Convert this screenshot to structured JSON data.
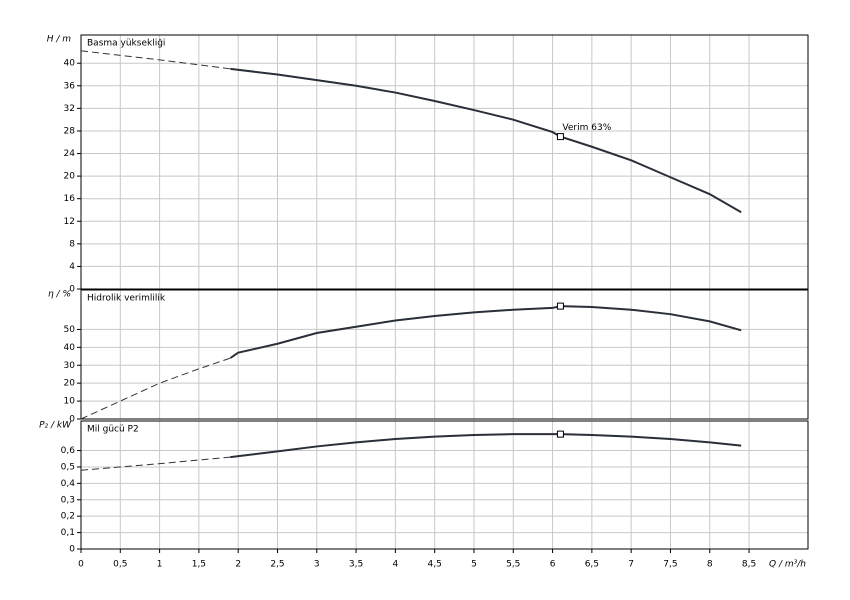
{
  "chart_data": [
    {
      "type": "line",
      "title": "Basma yüksekliği",
      "y_label": "H / m",
      "xlim": [
        0,
        9.25
      ],
      "ylim": [
        0,
        45
      ],
      "yticks": [
        0,
        4,
        8,
        12,
        16,
        20,
        24,
        28,
        32,
        36,
        40
      ],
      "grid": true,
      "series": [
        {
          "style": "dashed",
          "x": [
            0,
            1,
            1.9
          ],
          "values": [
            42.2,
            40.6,
            39
          ]
        },
        {
          "style": "solid",
          "x": [
            1.9,
            2.5,
            3,
            3.5,
            4,
            4.5,
            5,
            5.5,
            6,
            6.1,
            6.5,
            7,
            7.5,
            8,
            8.4
          ],
          "values": [
            39,
            38,
            37,
            36,
            34.8,
            33.3,
            31.7,
            30,
            27.8,
            27,
            25.2,
            22.8,
            19.8,
            16.8,
            13.6
          ]
        }
      ],
      "markers": [
        {
          "x": 6.1,
          "y": 27,
          "label": "Verim  63%"
        }
      ]
    },
    {
      "type": "line",
      "title": "Hidrolik verimlilik",
      "y_label": "η / %",
      "xlim": [
        0,
        9.25
      ],
      "ylim": [
        0,
        72
      ],
      "yticks": [
        0,
        10,
        20,
        30,
        40,
        50
      ],
      "grid": true,
      "series": [
        {
          "style": "dashed",
          "x": [
            0,
            0.5,
            1,
            1.5,
            1.9
          ],
          "values": [
            0,
            10,
            20,
            28,
            34
          ]
        },
        {
          "style": "solid",
          "x": [
            1.9,
            2,
            2.5,
            3,
            3.5,
            4,
            4.5,
            5,
            5.5,
            6,
            6.1,
            6.5,
            7,
            7.5,
            8,
            8.4
          ],
          "values": [
            34,
            37,
            42,
            48,
            51.5,
            55,
            57.5,
            59.5,
            61,
            62,
            63,
            62.5,
            61,
            58.5,
            54.5,
            49.5
          ]
        }
      ],
      "markers": [
        {
          "x": 6.1,
          "y": 63
        }
      ]
    },
    {
      "type": "line",
      "title": "Mil gücü P2",
      "y_label": "P₂ / kW",
      "x_label": "Q / m³/h",
      "xlim": [
        0,
        9.25
      ],
      "ylim": [
        0,
        0.78
      ],
      "yticks": [
        0,
        {
          "value": 0.1,
          "label": "0,1"
        },
        {
          "value": 0.2,
          "label": "0,2"
        },
        {
          "value": 0.3,
          "label": "0,3"
        },
        {
          "value": 0.4,
          "label": "0,4"
        },
        {
          "value": 0.5,
          "label": "0,5"
        },
        {
          "value": 0.6,
          "label": "0,6"
        }
      ],
      "xticks": [
        0,
        {
          "value": 0.5,
          "label": "0,5"
        },
        1,
        {
          "value": 1.5,
          "label": "1,5"
        },
        2,
        {
          "value": 2.5,
          "label": "2,5"
        },
        3,
        {
          "value": 3.5,
          "label": "3,5"
        },
        4,
        {
          "value": 4.5,
          "label": "4,5"
        },
        5,
        {
          "value": 5.5,
          "label": "5,5"
        },
        6,
        {
          "value": 6.5,
          "label": "6,5"
        },
        7,
        {
          "value": 7.5,
          "label": "7,5"
        },
        8,
        {
          "value": 8.5,
          "label": "8,5"
        }
      ],
      "grid": true,
      "series": [
        {
          "style": "dashed",
          "x": [
            0,
            1,
            1.9
          ],
          "values": [
            0.48,
            0.52,
            0.56
          ]
        },
        {
          "style": "solid",
          "x": [
            1.9,
            2.5,
            3,
            3.5,
            4,
            4.5,
            5,
            5.5,
            6,
            6.1,
            6.5,
            7,
            7.5,
            8,
            8.4
          ],
          "values": [
            0.56,
            0.595,
            0.625,
            0.65,
            0.67,
            0.685,
            0.695,
            0.7,
            0.7,
            0.7,
            0.695,
            0.685,
            0.67,
            0.65,
            0.63
          ]
        }
      ],
      "markers": [
        {
          "x": 6.1,
          "y": 0.7
        }
      ]
    }
  ]
}
